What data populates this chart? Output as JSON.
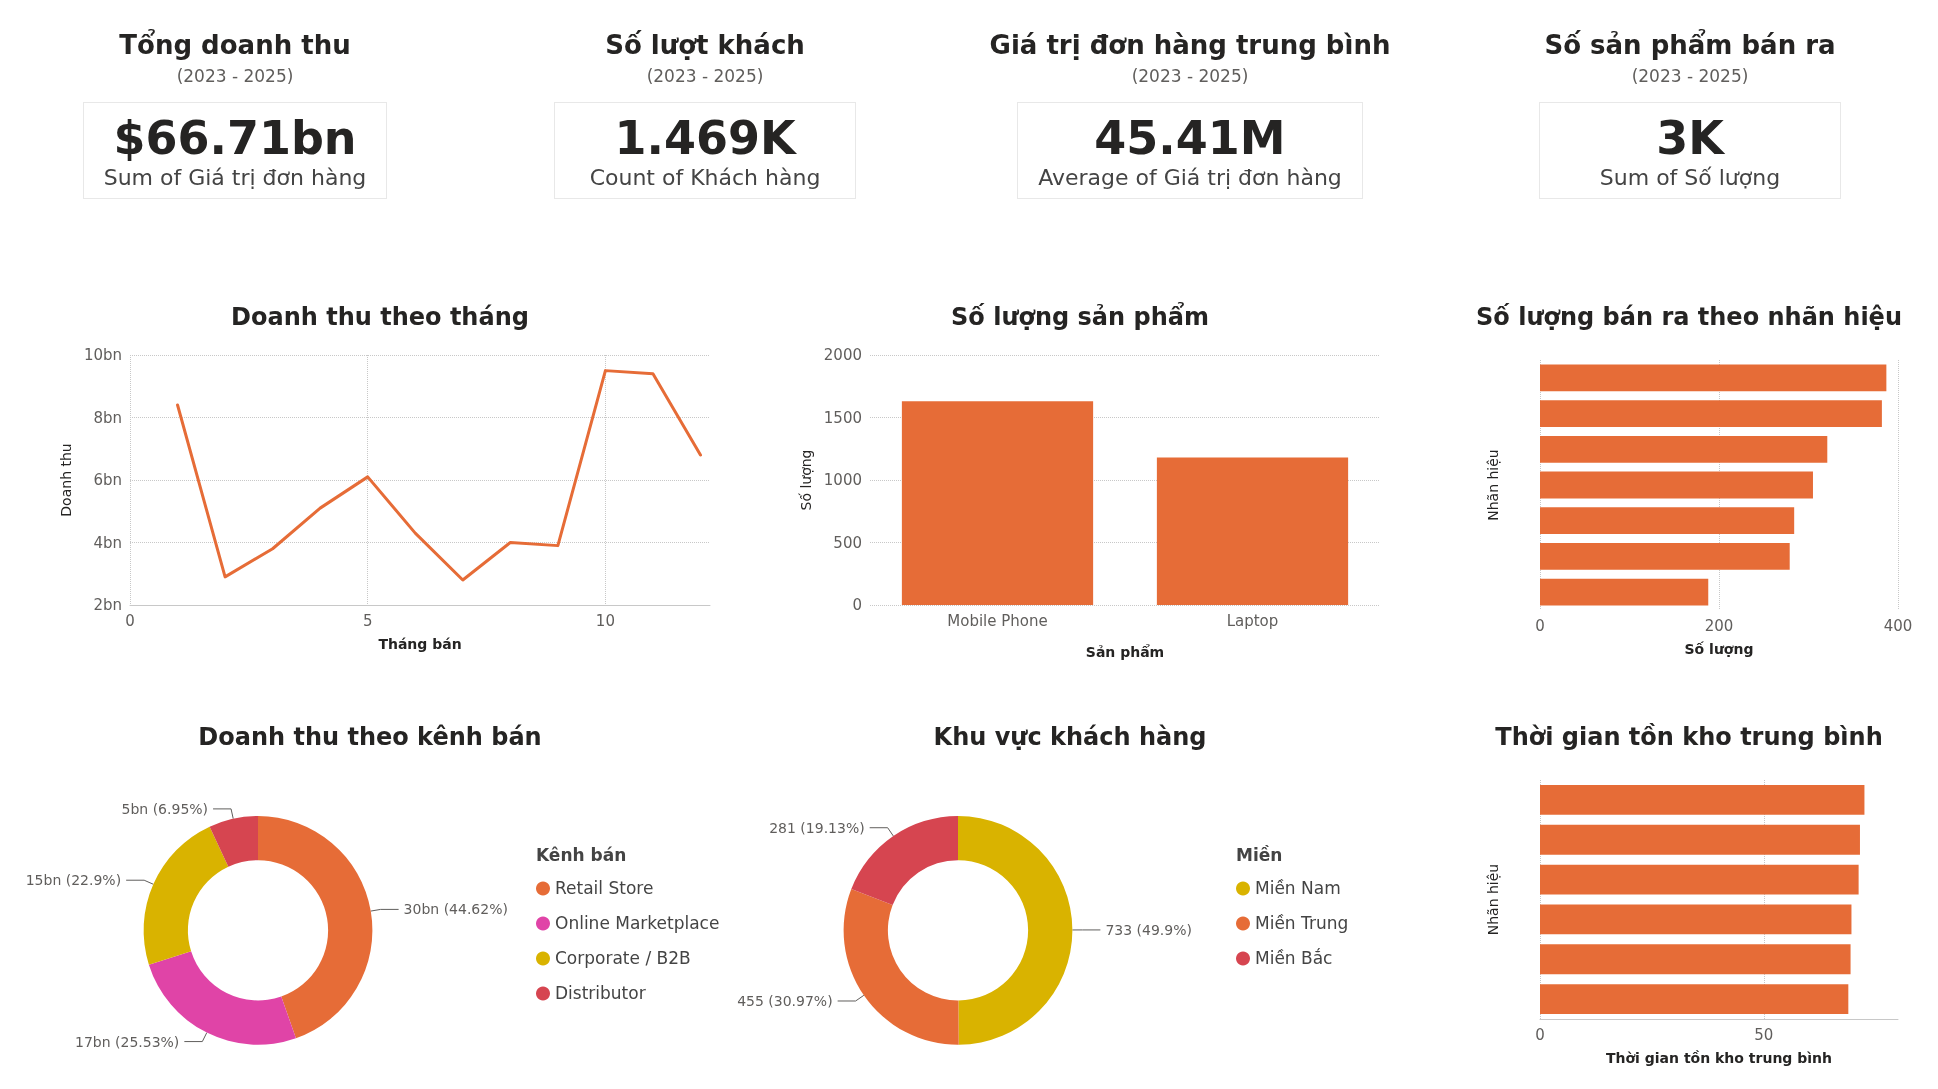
{
  "chart_data": [
    {
      "type": "other",
      "title": "Tổng doanh thu",
      "subtitle": "(2023 - 2025)",
      "annotations": [
        "$66.71bn",
        "Sum of Giá trị đơn hàng"
      ]
    },
    {
      "type": "other",
      "title": "Số lượt khách",
      "subtitle": "(2023 - 2025)",
      "annotations": [
        "1.469K",
        "Count of Khách hàng"
      ]
    },
    {
      "type": "other",
      "title": "Giá trị đơn hàng trung bình",
      "subtitle": "(2023 - 2025)",
      "annotations": [
        "45.41M",
        "Average of Giá trị đơn hàng"
      ]
    },
    {
      "type": "other",
      "title": "Số sản phẩm bán ra",
      "subtitle": "(2023 - 2025)",
      "annotations": [
        "3K",
        "Sum of Số lượng"
      ]
    },
    {
      "type": "line",
      "title": "Doanh thu theo tháng",
      "xlabel": "Tháng bán",
      "ylabel": "Doanh thu",
      "x": [
        1,
        2,
        3,
        4,
        5,
        6,
        7,
        8,
        9,
        10,
        11,
        12
      ],
      "series": [
        {
          "color": "#e66c37",
          "values": [
            8.4,
            2.9,
            3.8,
            5.1,
            6.1,
            4.3,
            2.8,
            4.0,
            3.9,
            9.5,
            9.4,
            6.8
          ]
        }
      ],
      "xlim": [
        0,
        12.2
      ],
      "xticks": [
        0,
        5,
        10
      ],
      "ylim": [
        2,
        10
      ],
      "yticks": [
        {
          "value": 2,
          "label": "2bn"
        },
        {
          "value": 4,
          "label": "4bn"
        },
        {
          "value": 6,
          "label": "6bn"
        },
        {
          "value": 8,
          "label": "8bn"
        },
        {
          "value": 10,
          "label": "10bn"
        }
      ],
      "grid": true,
      "marker": "none",
      "line_style": "solid"
    },
    {
      "type": "bar",
      "title": "Số lượng sản phẩm",
      "xlabel": "Sản phẩm",
      "ylabel": "Số lượng",
      "categories": [
        "Mobile Phone",
        "Laptop"
      ],
      "series": [
        {
          "color": "#e66c37",
          "values": [
            1630,
            1180
          ]
        }
      ],
      "ylim": [
        0,
        2000
      ],
      "yticks": [
        0,
        500,
        1000,
        1500,
        2000
      ],
      "grid": "y"
    },
    {
      "type": "bar",
      "orientation": "horizontal",
      "title": "Số lượng bán ra theo nhãn hiệu",
      "xlabel": "Số lượng",
      "ylabel": "Nhãn hiệu",
      "categories": [
        null,
        null,
        null,
        null,
        null,
        null,
        null
      ],
      "series": [
        {
          "color": "#e66c37",
          "values": [
            387,
            382,
            321,
            305,
            284,
            279,
            188
          ]
        }
      ],
      "xlim": [
        0,
        400
      ],
      "xticks": [
        0,
        200,
        400
      ],
      "grid": "x"
    },
    {
      "type": "donut",
      "title": "Doanh thu theo kênh bán",
      "legend_title": "Kênh bán",
      "legend": "right",
      "categories": [
        "Retail Store",
        "Online Marketplace",
        "Corporate / B2B",
        "Distributor"
      ],
      "values": [
        44.62,
        25.53,
        22.9,
        6.95
      ],
      "colors": [
        "#e66c37",
        "#e044a7",
        "#d9b300",
        "#d64550"
      ],
      "value_labels": [
        "30bn (44.62%)",
        "17bn (25.53%)",
        "15bn (22.9%)",
        "5bn (6.95%)"
      ]
    },
    {
      "type": "donut",
      "title": "Khu vực khách hàng",
      "legend_title": "Miền",
      "legend": "right",
      "categories": [
        "Miền Nam",
        "Miền Trung",
        "Miền Bắc"
      ],
      "values": [
        733,
        455,
        281
      ],
      "colors": [
        "#d9b300",
        "#e66c37",
        "#d64550"
      ],
      "value_labels": [
        "733 (49.9%)",
        "455 (30.97%)",
        "281 (19.13%)"
      ]
    },
    {
      "type": "bar",
      "orientation": "horizontal",
      "title": "Thời gian tồn kho trung bình",
      "xlabel": "Thời gian tồn kho trung bình",
      "ylabel": "Nhãn hiệu",
      "categories": [
        null,
        null,
        null,
        null,
        null,
        null
      ],
      "series": [
        {
          "color": "#e66c37",
          "values": [
            72.5,
            71.5,
            71.2,
            69.6,
            69.4,
            68.9
          ]
        }
      ],
      "xlim": [
        0,
        80
      ],
      "xticks": [
        0,
        50
      ],
      "grid": "x"
    }
  ]
}
